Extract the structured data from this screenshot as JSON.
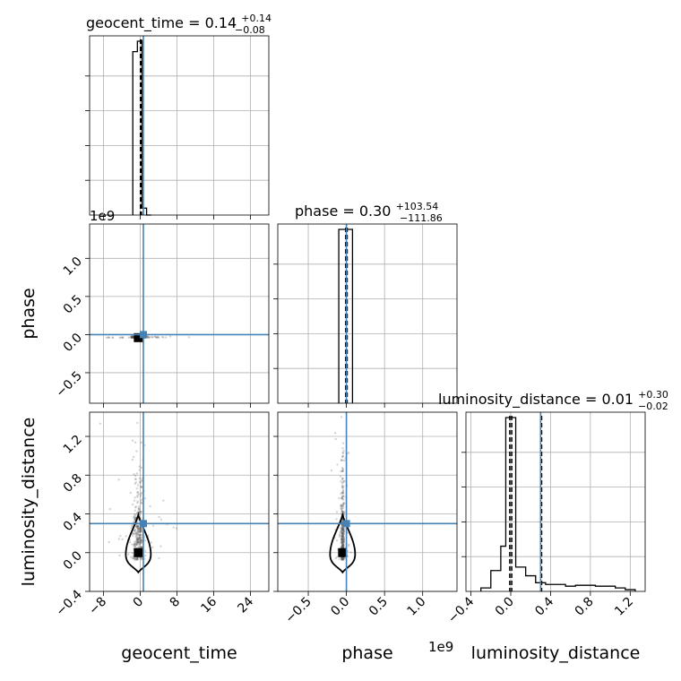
{
  "chart_data": {
    "type": "corner",
    "parameters": [
      "geocent_time",
      "phase",
      "luminosity_distance"
    ],
    "truth_color": "#4682b4",
    "line_color": "#000000",
    "panels": {
      "geocent_time_hist": {
        "title_main": "geocent_time = 0.14",
        "title_sup": "+0.14",
        "title_sub": "−0.08",
        "xlim": [
          -11,
          28
        ],
        "bin_edges": [
          -1.6,
          -0.6,
          0.4,
          1.4,
          2.4
        ],
        "counts": [
          0.94,
          1.0,
          0.04,
          0.0
        ],
        "quantiles": [
          0.06,
          0.14,
          0.28
        ],
        "truth": 0.7
      },
      "phase_hist": {
        "title_main": "phase = 0.30",
        "title_sup": "+103.54",
        "title_sub": "−111.86",
        "xlim": [
          -0.9,
          1.45
        ],
        "offset": "1e9",
        "bin_edges": [
          -0.1,
          -0.01,
          0.08
        ],
        "counts": [
          1.0,
          1.0
        ],
        "quantiles": [
          -0.01,
          0.0,
          0.01
        ],
        "truth": 0.0
      },
      "luminosity_distance_hist": {
        "title_main": "luminosity_distance = 0.01",
        "title_sup": "+0.30",
        "title_sub": "−0.02",
        "xlim": [
          -0.45,
          1.35
        ],
        "bin_edges": [
          -0.3,
          -0.2,
          -0.1,
          -0.05,
          0.05,
          0.15,
          0.25,
          0.35,
          0.45,
          0.55,
          0.65,
          0.75,
          0.85,
          0.95,
          1.05,
          1.15,
          1.25
        ],
        "counts": [
          0.02,
          0.12,
          0.26,
          1.0,
          0.14,
          0.09,
          0.05,
          0.04,
          0.04,
          0.03,
          0.035,
          0.035,
          0.03,
          0.03,
          0.02,
          0.01
        ],
        "quantiles": [
          -0.01,
          0.01,
          0.31
        ],
        "truth": 0.3
      },
      "phase_vs_geocent_time": {
        "xlim": [
          -11,
          28
        ],
        "ylim": [
          -0.9,
          1.45
        ],
        "offset": "1e9",
        "truth": [
          0.7,
          0.0
        ],
        "core": [
          -0.4,
          -0.04
        ]
      },
      "luminosity_distance_vs_geocent_time": {
        "xlim": [
          -11,
          28
        ],
        "ylim": [
          -0.4,
          1.45
        ],
        "truth": [
          0.7,
          0.3
        ],
        "core": [
          -0.4,
          0.0
        ]
      },
      "luminosity_distance_vs_phase": {
        "xlim": [
          -0.9,
          1.45
        ],
        "ylim": [
          -0.4,
          1.45
        ],
        "truth": [
          0.0,
          0.3
        ],
        "core": [
          -0.05,
          0.0
        ]
      }
    },
    "axes": {
      "geocent_time": {
        "label": "geocent_time",
        "ticks": [
          -8,
          0,
          8,
          16,
          24
        ],
        "tick_labels": [
          "−8",
          "0",
          "8",
          "16",
          "24"
        ]
      },
      "phase_x": {
        "label": "phase",
        "ticks": [
          -0.5,
          0.0,
          0.5,
          1.0
        ],
        "tick_labels": [
          "−0.5",
          "0.0",
          "0.5",
          "1.0"
        ],
        "offset": "1e9"
      },
      "phase_y": {
        "label": "phase",
        "ticks": [
          -0.5,
          0.0,
          0.5,
          1.0
        ],
        "tick_labels": [
          "−0.5",
          "0.0",
          "0.5",
          "1.0"
        ],
        "offset": "1e9"
      },
      "luminosity_distance_x": {
        "label": "luminosity_distance",
        "ticks": [
          -0.4,
          0.0,
          0.4,
          0.8,
          1.2
        ],
        "tick_labels": [
          "−0.4",
          "0.0",
          "0.4",
          "0.8",
          "1.2"
        ]
      },
      "luminosity_distance_y": {
        "label": "luminosity_distance",
        "ticks": [
          -0.4,
          0.0,
          0.4,
          0.8,
          1.2
        ],
        "tick_labels": [
          "−0.4",
          "0.0",
          "0.4",
          "0.8",
          "1.2"
        ]
      }
    },
    "grid": true
  }
}
